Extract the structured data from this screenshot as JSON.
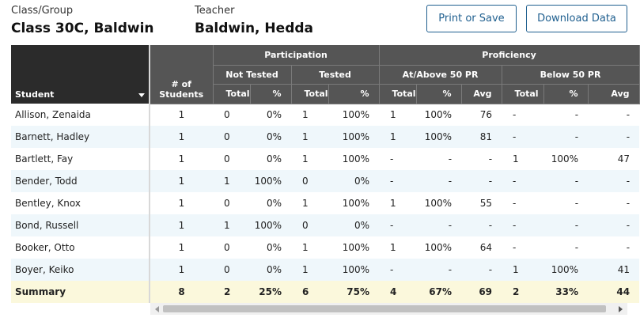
{
  "header": {
    "class_label": "Class/Group",
    "class_value": "Class 30C, Baldwin",
    "teacher_label": "Teacher",
    "teacher_value": "Baldwin, Hedda"
  },
  "buttons": {
    "print": "Print or Save",
    "download": "Download Data"
  },
  "table": {
    "student_header": "Student",
    "num_students_header": "# of Students",
    "group_headers": {
      "participation": "Participation",
      "proficiency": "Proficiency"
    },
    "sub_headers": {
      "not_tested": "Not Tested",
      "tested": "Tested",
      "at_above": "At/Above 50 PR",
      "below": "Below 50 PR"
    },
    "col_headers": {
      "nt_total": "Total",
      "nt_pct": "%",
      "t_total": "Total",
      "t_pct": "%",
      "aa_total": "Total",
      "aa_pct": "%",
      "aa_avg": "Avg",
      "b_total": "Total",
      "b_pct": "%",
      "b_avg": "Avg"
    },
    "rows": [
      {
        "student": "Allison, Zenaida",
        "n": "1",
        "nt_total": "0",
        "nt_pct": "0%",
        "t_total": "1",
        "t_pct": "100%",
        "aa_total": "1",
        "aa_pct": "100%",
        "aa_avg": "76",
        "b_total": "-",
        "b_pct": "-",
        "b_avg": "-"
      },
      {
        "student": "Barnett, Hadley",
        "n": "1",
        "nt_total": "0",
        "nt_pct": "0%",
        "t_total": "1",
        "t_pct": "100%",
        "aa_total": "1",
        "aa_pct": "100%",
        "aa_avg": "81",
        "b_total": "-",
        "b_pct": "-",
        "b_avg": "-"
      },
      {
        "student": "Bartlett, Fay",
        "n": "1",
        "nt_total": "0",
        "nt_pct": "0%",
        "t_total": "1",
        "t_pct": "100%",
        "aa_total": "-",
        "aa_pct": "-",
        "aa_avg": "-",
        "b_total": "1",
        "b_pct": "100%",
        "b_avg": "47"
      },
      {
        "student": "Bender, Todd",
        "n": "1",
        "nt_total": "1",
        "nt_pct": "100%",
        "t_total": "0",
        "t_pct": "0%",
        "aa_total": "-",
        "aa_pct": "-",
        "aa_avg": "-",
        "b_total": "-",
        "b_pct": "-",
        "b_avg": "-"
      },
      {
        "student": "Bentley, Knox",
        "n": "1",
        "nt_total": "0",
        "nt_pct": "0%",
        "t_total": "1",
        "t_pct": "100%",
        "aa_total": "1",
        "aa_pct": "100%",
        "aa_avg": "55",
        "b_total": "-",
        "b_pct": "-",
        "b_avg": "-"
      },
      {
        "student": "Bond, Russell",
        "n": "1",
        "nt_total": "1",
        "nt_pct": "100%",
        "t_total": "0",
        "t_pct": "0%",
        "aa_total": "-",
        "aa_pct": "-",
        "aa_avg": "-",
        "b_total": "-",
        "b_pct": "-",
        "b_avg": "-"
      },
      {
        "student": "Booker, Otto",
        "n": "1",
        "nt_total": "0",
        "nt_pct": "0%",
        "t_total": "1",
        "t_pct": "100%",
        "aa_total": "1",
        "aa_pct": "100%",
        "aa_avg": "64",
        "b_total": "-",
        "b_pct": "-",
        "b_avg": "-"
      },
      {
        "student": "Boyer, Keiko",
        "n": "1",
        "nt_total": "0",
        "nt_pct": "0%",
        "t_total": "1",
        "t_pct": "100%",
        "aa_total": "-",
        "aa_pct": "-",
        "aa_avg": "-",
        "b_total": "1",
        "b_pct": "100%",
        "b_avg": "41"
      }
    ],
    "summary": {
      "student": "Summary",
      "n": "8",
      "nt_total": "2",
      "nt_pct": "25%",
      "t_total": "6",
      "t_pct": "75%",
      "aa_total": "4",
      "aa_pct": "67%",
      "aa_avg": "69",
      "b_total": "2",
      "b_pct": "33%",
      "b_avg": "44"
    }
  },
  "icons": {
    "sort": "sort-desc-icon",
    "scroll_left": "scroll-left-icon",
    "scroll_right": "scroll-right-icon"
  },
  "colors": {
    "accent": "#1f5f8f",
    "header_dark": "#2b2b2b",
    "header_gray": "#555555",
    "row_alt": "#eff7fb",
    "summary_bg": "#fbf8dc"
  }
}
